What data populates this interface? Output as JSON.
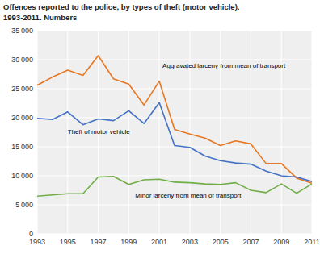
{
  "chart_data": {
    "type": "line",
    "title": "Offences reported to the police, by types of theft (motor vehicle).",
    "subtitle": "1993-2011. Numbers",
    "x": [
      1993,
      1994,
      1995,
      1996,
      1997,
      1998,
      1999,
      2000,
      2001,
      2002,
      2003,
      2004,
      2005,
      2006,
      2007,
      2008,
      2009,
      2010,
      2011
    ],
    "series": [
      {
        "name": "Aggravated larceny from mean of transport",
        "color": "#E87722",
        "values": [
          25600,
          27000,
          28200,
          27300,
          30700,
          26700,
          25800,
          22200,
          26300,
          18000,
          17200,
          16500,
          15200,
          16000,
          15500,
          12100,
          12100,
          9600,
          8700
        ]
      },
      {
        "name": "Theft of motor vehicle",
        "color": "#4472C4",
        "values": [
          19900,
          19700,
          21000,
          18800,
          19800,
          19500,
          21200,
          19000,
          22600,
          15200,
          14900,
          13400,
          12600,
          12200,
          12000,
          10800,
          10000,
          9800,
          9000
        ]
      },
      {
        "name": "Minor larceny from mean of transport",
        "color": "#70AD47",
        "values": [
          6500,
          6700,
          6900,
          6900,
          9800,
          9900,
          8500,
          9300,
          9400,
          8900,
          8800,
          8600,
          8500,
          8800,
          7500,
          7100,
          8600,
          7000,
          8600
        ]
      }
    ],
    "xlim": [
      1993,
      2011
    ],
    "xticks": [
      1993,
      1995,
      1997,
      1999,
      2001,
      2003,
      2005,
      2007,
      2009,
      2011
    ],
    "ylim": [
      0,
      35000
    ],
    "yticks": [
      0,
      {
        "value": 5000,
        "label": "5 000"
      },
      {
        "value": 10000,
        "label": "10 000"
      },
      {
        "value": 15000,
        "label": "15 000"
      },
      {
        "value": 20000,
        "label": "20 000"
      },
      {
        "value": 25000,
        "label": "25 000"
      },
      {
        "value": 30000,
        "label": "30 000"
      },
      {
        "value": 35000,
        "label": "35 000"
      }
    ],
    "grid": true
  }
}
